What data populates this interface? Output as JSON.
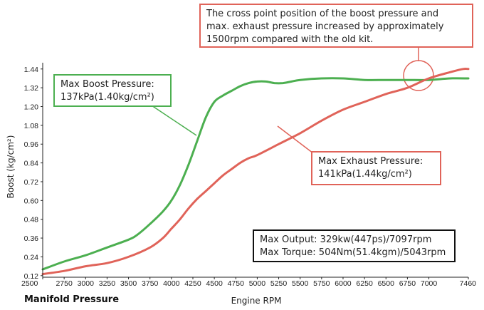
{
  "chart_data": {
    "type": "line",
    "title": "",
    "xlabel": "Engine RPM",
    "ylabel": "Boost (kg/cm²)",
    "footer_label": "Manifold Pressure",
    "x_ticks": [
      "2500",
      "2750",
      "3000",
      "3250",
      "3500",
      "3750",
      "4000",
      "4250",
      "4500",
      "4750",
      "5000",
      "5250",
      "5500",
      "5750",
      "6000",
      "6250",
      "6500",
      "6750",
      "7000",
      "7460"
    ],
    "y_ticks": [
      "0.12",
      "0.24",
      "0.36",
      "0.48",
      "0.60",
      "0.72",
      "0.84",
      "0.96",
      "1.08",
      "1.20",
      "1.32",
      "1.44"
    ],
    "xlim": [
      2500,
      7460
    ],
    "ylim": [
      0.11,
      1.48
    ],
    "grid": false,
    "series": [
      {
        "id": "boost",
        "color": "#4caf50",
        "x": [
          2500,
          2750,
          3000,
          3250,
          3500,
          3600,
          3750,
          3900,
          4000,
          4100,
          4200,
          4300,
          4400,
          4500,
          4600,
          4700,
          4800,
          4900,
          5000,
          5100,
          5200,
          5300,
          5400,
          5500,
          5750,
          6000,
          6250,
          6500,
          6750,
          7000,
          7250,
          7460
        ],
        "y": [
          0.16,
          0.21,
          0.25,
          0.3,
          0.35,
          0.38,
          0.45,
          0.53,
          0.6,
          0.7,
          0.83,
          0.98,
          1.13,
          1.23,
          1.27,
          1.3,
          1.33,
          1.35,
          1.36,
          1.36,
          1.35,
          1.35,
          1.36,
          1.37,
          1.38,
          1.38,
          1.37,
          1.37,
          1.37,
          1.37,
          1.38,
          1.38
        ]
      },
      {
        "id": "exhaust",
        "color": "#e06359",
        "x": [
          2500,
          2750,
          3000,
          3250,
          3500,
          3750,
          3900,
          4000,
          4100,
          4200,
          4300,
          4400,
          4500,
          4600,
          4700,
          4800,
          4900,
          5000,
          5250,
          5500,
          5750,
          6000,
          6250,
          6500,
          6750,
          7000,
          7250,
          7400,
          7460
        ],
        "y": [
          0.13,
          0.15,
          0.18,
          0.2,
          0.24,
          0.3,
          0.36,
          0.42,
          0.48,
          0.55,
          0.61,
          0.66,
          0.71,
          0.76,
          0.8,
          0.84,
          0.87,
          0.89,
          0.96,
          1.03,
          1.11,
          1.18,
          1.23,
          1.28,
          1.32,
          1.38,
          1.42,
          1.44,
          1.44
        ]
      }
    ]
  },
  "annotations": {
    "max_boost": {
      "line1": "Max Boost Pressure:",
      "line2": "137kPa(1.40kg/cm²)"
    },
    "max_exhaust": {
      "line1": "Max Exhaust Pressure:",
      "line2": "141kPa(1.44kg/cm²)"
    },
    "cross_point": {
      "line1": "The cross point position of the boost pressure and",
      "line2": "max. exhaust pressure increased by approximately",
      "line3": "1500rpm compared with the old kit."
    },
    "output": {
      "line1": "Max Output: 329kw(447ps)/7097rpm",
      "line2": "Max Torque: 504Nm(51.4kgm)/5043rpm"
    }
  },
  "colors": {
    "boost": "#4caf50",
    "exhaust": "#e06359",
    "frame": "#222222"
  }
}
